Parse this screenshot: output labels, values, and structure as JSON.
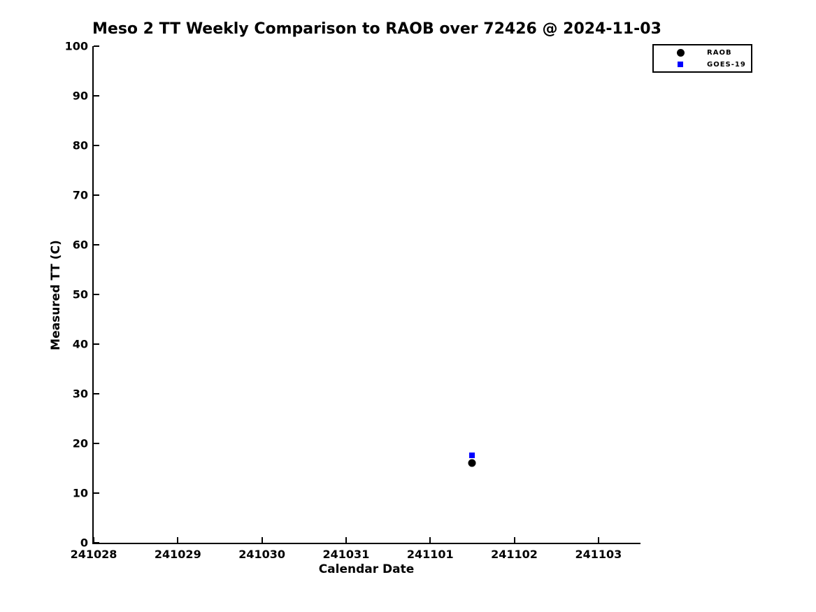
{
  "colors": {
    "background": "#ffffff",
    "axis": "#000000",
    "raob": "#000000",
    "goes19": "#0000ff"
  },
  "chart_data": {
    "type": "scatter",
    "title": "Meso 2 TT Weekly Comparison to RAOB over 72426 @ 2024-11-03",
    "xlabel": "Calendar Date",
    "ylabel": "Measured TT (C)",
    "ylim": [
      0,
      100
    ],
    "y_ticks": [
      0,
      10,
      20,
      30,
      40,
      50,
      60,
      70,
      80,
      90,
      100
    ],
    "xlim_days": [
      0,
      6.5
    ],
    "x_ticks": [
      {
        "label": "241028",
        "day": 0
      },
      {
        "label": "241029",
        "day": 1
      },
      {
        "label": "241030",
        "day": 2
      },
      {
        "label": "241031",
        "day": 3
      },
      {
        "label": "241101",
        "day": 4
      },
      {
        "label": "241102",
        "day": 5
      },
      {
        "label": "241103",
        "day": 6
      }
    ],
    "grid": false,
    "legend_position": "top-right-outside",
    "series": [
      {
        "name": "RAOB",
        "marker": "circle",
        "color": "#000000",
        "points": [
          {
            "x_label": "241101.5",
            "x_days": 4.5,
            "y": 16.1
          }
        ]
      },
      {
        "name": "GOES-19",
        "marker": "square",
        "color": "#0000ff",
        "points": [
          {
            "x_label": "241101.5",
            "x_days": 4.5,
            "y": 17.6
          }
        ]
      }
    ]
  }
}
